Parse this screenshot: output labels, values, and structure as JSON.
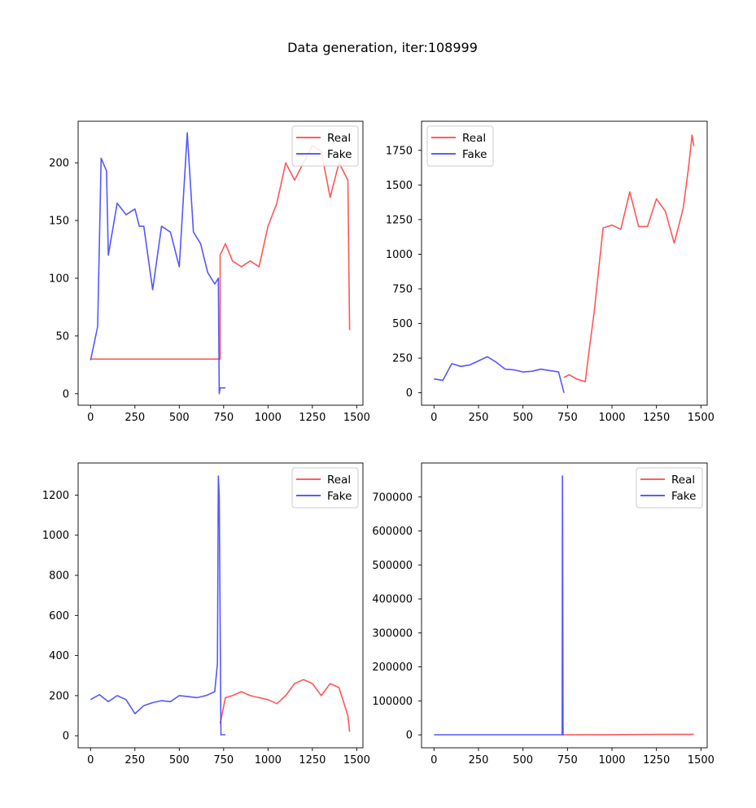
{
  "figure": {
    "title": "Data generation, iter:108999"
  },
  "colors": {
    "real": "#ff4444",
    "fake": "#4444ff",
    "overlap": "#5a1acc"
  },
  "chart_data": [
    {
      "type": "line",
      "xlim": [
        -70,
        1535
      ],
      "ylim": [
        -10,
        236
      ],
      "xticks": [
        0,
        250,
        500,
        750,
        1000,
        1250,
        1500
      ],
      "yticks": [
        0,
        50,
        100,
        150,
        200
      ],
      "legend_position": "upper right",
      "series": [
        {
          "name": "Real",
          "color": "#ff4444",
          "x": [
            0,
            730,
            730,
            760,
            800,
            850,
            900,
            950,
            1000,
            1050,
            1100,
            1150,
            1200,
            1250,
            1300,
            1350,
            1400,
            1450,
            1460
          ],
          "y": [
            30,
            30,
            120,
            130,
            115,
            110,
            115,
            110,
            145,
            165,
            200,
            185,
            200,
            215,
            210,
            170,
            200,
            185,
            55
          ]
        },
        {
          "name": "Fake",
          "color": "#4444ff",
          "x": [
            0,
            40,
            60,
            90,
            100,
            150,
            200,
            250,
            275,
            300,
            350,
            400,
            450,
            500,
            545,
            580,
            620,
            660,
            700,
            720,
            725,
            730,
            760
          ],
          "y": [
            29,
            58,
            204,
            193,
            120,
            165,
            155,
            160,
            145,
            145,
            90,
            145,
            140,
            110,
            226,
            140,
            130,
            105,
            95,
            100,
            0,
            5,
            5
          ]
        }
      ]
    },
    {
      "type": "line",
      "xlim": [
        -70,
        1535
      ],
      "ylim": [
        -90,
        1960
      ],
      "xticks": [
        0,
        250,
        500,
        750,
        1000,
        1250,
        1500
      ],
      "yticks": [
        0,
        250,
        500,
        750,
        1000,
        1250,
        1500,
        1750
      ],
      "legend_position": "upper left",
      "series": [
        {
          "name": "Real",
          "color": "#ff4444",
          "x": [
            730,
            760,
            800,
            850,
            870,
            900,
            950,
            1000,
            1050,
            1100,
            1150,
            1200,
            1250,
            1300,
            1350,
            1400,
            1430,
            1450,
            1460
          ],
          "y": [
            110,
            130,
            100,
            80,
            290,
            580,
            1190,
            1210,
            1180,
            1450,
            1200,
            1200,
            1400,
            1310,
            1080,
            1330,
            1620,
            1860,
            1780
          ]
        },
        {
          "name": "Fake",
          "color": "#4444ff",
          "x": [
            0,
            50,
            100,
            150,
            200,
            250,
            300,
            350,
            400,
            450,
            500,
            550,
            600,
            650,
            700,
            730
          ],
          "y": [
            100,
            90,
            210,
            190,
            200,
            230,
            260,
            220,
            170,
            165,
            150,
            155,
            170,
            160,
            150,
            0
          ]
        }
      ]
    },
    {
      "type": "line",
      "xlim": [
        -70,
        1535
      ],
      "ylim": [
        -60,
        1360
      ],
      "xticks": [
        0,
        250,
        500,
        750,
        1000,
        1250,
        1500
      ],
      "yticks": [
        0,
        200,
        400,
        600,
        800,
        1000,
        1200
      ],
      "legend_position": "upper right",
      "series": [
        {
          "name": "Real",
          "color": "#ff4444",
          "x": [
            730,
            760,
            800,
            850,
            900,
            950,
            1000,
            1050,
            1100,
            1150,
            1200,
            1250,
            1300,
            1350,
            1400,
            1450,
            1460
          ],
          "y": [
            60,
            190,
            200,
            220,
            200,
            190,
            180,
            160,
            200,
            260,
            280,
            260,
            200,
            260,
            240,
            100,
            20
          ]
        },
        {
          "name": "Fake",
          "color": "#4444ff",
          "x": [
            0,
            50,
            100,
            150,
            200,
            250,
            300,
            350,
            400,
            450,
            500,
            550,
            600,
            650,
            700,
            715,
            720,
            725,
            735,
            760
          ],
          "y": [
            180,
            205,
            170,
            200,
            180,
            110,
            150,
            165,
            175,
            170,
            200,
            195,
            190,
            200,
            220,
            360,
            1295,
            1200,
            5,
            5
          ]
        }
      ]
    },
    {
      "type": "line",
      "xlim": [
        -70,
        1535
      ],
      "ylim": [
        -38000,
        800000
      ],
      "xticks": [
        0,
        250,
        500,
        750,
        1000,
        1250,
        1500
      ],
      "yticks": [
        0,
        100000,
        200000,
        300000,
        400000,
        500000,
        600000,
        700000
      ],
      "legend_position": "upper right",
      "series": [
        {
          "name": "Real",
          "color": "#ff4444",
          "x": [
            730,
            1000,
            1250,
            1460
          ],
          "y": [
            250,
            600,
            1200,
            1800
          ]
        },
        {
          "name": "Fake",
          "color": "#4444ff",
          "x": [
            0,
            720,
            722,
            725,
            730
          ],
          "y": [
            200,
            200,
            762000,
            400,
            200
          ]
        }
      ]
    }
  ]
}
